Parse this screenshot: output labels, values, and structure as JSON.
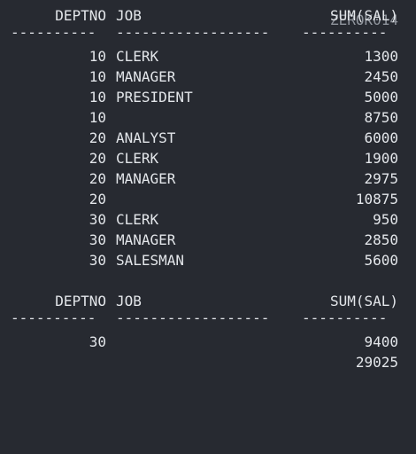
{
  "watermark": "ZEROK014",
  "table1": {
    "headers": {
      "deptno": "DEPTNO",
      "job": "JOB",
      "sum": "SUM(SAL)"
    },
    "dashes": {
      "deptno": "----------",
      "job": "------------------",
      "sum": "----------"
    },
    "rows": [
      {
        "deptno": "10",
        "job": "CLERK",
        "sum": "1300"
      },
      {
        "deptno": "10",
        "job": "MANAGER",
        "sum": "2450"
      },
      {
        "deptno": "10",
        "job": "PRESIDENT",
        "sum": "5000"
      },
      {
        "deptno": "10",
        "job": "",
        "sum": "8750"
      },
      {
        "deptno": "20",
        "job": "ANALYST",
        "sum": "6000"
      },
      {
        "deptno": "20",
        "job": "CLERK",
        "sum": "1900"
      },
      {
        "deptno": "20",
        "job": "MANAGER",
        "sum": "2975"
      },
      {
        "deptno": "20",
        "job": "",
        "sum": "10875"
      },
      {
        "deptno": "30",
        "job": "CLERK",
        "sum": "950"
      },
      {
        "deptno": "30",
        "job": "MANAGER",
        "sum": "2850"
      },
      {
        "deptno": "30",
        "job": "SALESMAN",
        "sum": "5600"
      }
    ]
  },
  "table2": {
    "headers": {
      "deptno": "DEPTNO",
      "job": "JOB",
      "sum": "SUM(SAL)"
    },
    "dashes": {
      "deptno": "----------",
      "job": "------------------",
      "sum": "----------"
    },
    "rows": [
      {
        "deptno": "30",
        "job": "",
        "sum": "9400"
      },
      {
        "deptno": "",
        "job": "",
        "sum": "29025"
      }
    ]
  }
}
